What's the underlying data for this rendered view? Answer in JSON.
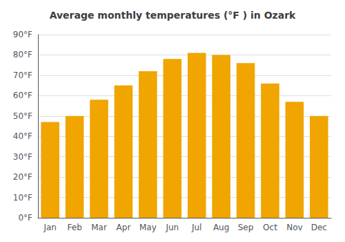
{
  "chart_data": {
    "type": "bar",
    "title": "Average monthly temperatures (°F ) in Ozark",
    "categories": [
      "Jan",
      "Feb",
      "Mar",
      "Apr",
      "May",
      "Jun",
      "Jul",
      "Aug",
      "Sep",
      "Oct",
      "Nov",
      "Dec"
    ],
    "values": [
      47,
      50,
      58,
      65,
      72,
      78,
      81,
      80,
      76,
      66,
      57,
      50
    ],
    "color": "#F0A500",
    "ylim": [
      0,
      90
    ],
    "yticks": [
      {
        "value": 0,
        "label": "0°F"
      },
      {
        "value": 10,
        "label": "10°F"
      },
      {
        "value": 20,
        "label": "20°F"
      },
      {
        "value": 30,
        "label": "30°F"
      },
      {
        "value": 40,
        "label": "40°F"
      },
      {
        "value": 50,
        "label": "50°F"
      },
      {
        "value": 60,
        "label": "60°F"
      },
      {
        "value": 70,
        "label": "70°F"
      },
      {
        "value": 80,
        "label": "80°F"
      },
      {
        "value": 90,
        "label": "90°F"
      }
    ],
    "grid": true
  }
}
